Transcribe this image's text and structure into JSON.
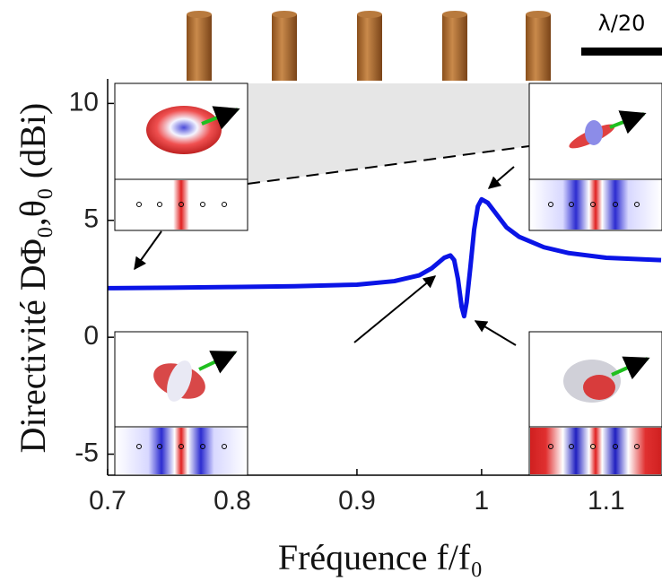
{
  "chart_data": {
    "type": "line",
    "xlabel": "Fréquence f/f₀",
    "ylabel": "Directivité DΦ₀,θ₀ (dBi)",
    "scale_label": "λ/20",
    "x": [
      0.7,
      0.75,
      0.8,
      0.85,
      0.9,
      0.93,
      0.95,
      0.96,
      0.97,
      0.975,
      0.978,
      0.981,
      0.984,
      0.986,
      0.988,
      0.991,
      0.994,
      0.997,
      1.0,
      1.005,
      1.01,
      1.02,
      1.03,
      1.05,
      1.07,
      1.1,
      1.144
    ],
    "values": [
      2.1,
      2.12,
      2.15,
      2.18,
      2.25,
      2.4,
      2.65,
      2.95,
      3.4,
      3.5,
      3.3,
      2.5,
      1.3,
      0.9,
      1.5,
      3.0,
      4.6,
      5.6,
      5.9,
      5.75,
      5.4,
      4.7,
      4.3,
      3.85,
      3.6,
      3.4,
      3.3
    ],
    "color": "#0a14e6",
    "xlim": [
      0.7,
      1.144
    ],
    "ylim": [
      -5.9,
      11.05
    ],
    "xticks": [
      0.7,
      0.8,
      0.9,
      1,
      1.1
    ],
    "yticks": [
      -5,
      0,
      5,
      10
    ]
  }
}
